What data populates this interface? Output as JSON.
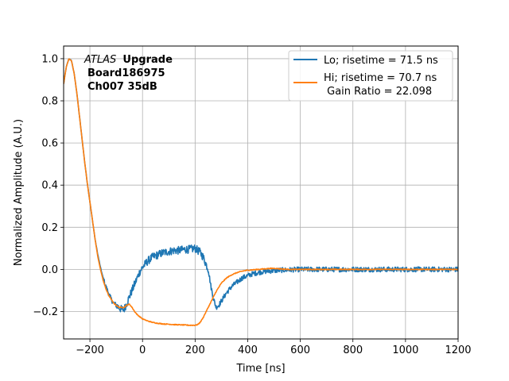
{
  "chart_data": {
    "type": "line",
    "title": "",
    "xlabel": "Time [ns]",
    "ylabel": "Normalized Amplitude (A.U.)",
    "xlim": [
      -300,
      1200
    ],
    "ylim": [
      -0.33,
      1.06
    ],
    "xticks": [
      -200,
      0,
      200,
      400,
      600,
      800,
      1000,
      1200
    ],
    "xtick_labels": [
      "−200",
      "0",
      "200",
      "400",
      "600",
      "800",
      "1000",
      "1200"
    ],
    "yticks": [
      -0.2,
      0.0,
      0.2,
      0.4,
      0.6,
      0.8,
      1.0
    ],
    "ytick_labels": [
      "−0.2",
      "0.0",
      "0.2",
      "0.4",
      "0.6",
      "0.8",
      "1.0"
    ],
    "grid": true,
    "legend_position": "top-right",
    "annotation": {
      "italic": "ATLAS",
      "bold": "Upgrade",
      "line2": "Board186975",
      "line3": "Ch007 35dB"
    },
    "series": [
      {
        "name": "Lo; risetime = 71.5 ns",
        "color": "#1f77b4",
        "noise": 0.012,
        "x": [
          -300,
          -290,
          -280,
          -270,
          -260,
          -250,
          -240,
          -230,
          -220,
          -210,
          -200,
          -190,
          -180,
          -170,
          -160,
          -150,
          -140,
          -130,
          -120,
          -110,
          -100,
          -90,
          -80,
          -70,
          -60,
          -50,
          -40,
          -30,
          -20,
          -10,
          0,
          20,
          40,
          60,
          80,
          100,
          120,
          140,
          160,
          180,
          200,
          220,
          230,
          240,
          250,
          260,
          270,
          280,
          290,
          300,
          320,
          340,
          360,
          380,
          400,
          420,
          440,
          460,
          480,
          500,
          520,
          540,
          560,
          580,
          600,
          700,
          800,
          900,
          1000,
          1100,
          1200
        ],
        "y": [
          0.88,
          0.96,
          1.0,
          0.99,
          0.93,
          0.84,
          0.73,
          0.62,
          0.51,
          0.41,
          0.32,
          0.23,
          0.14,
          0.07,
          0.01,
          -0.04,
          -0.08,
          -0.11,
          -0.14,
          -0.16,
          -0.17,
          -0.18,
          -0.19,
          -0.19,
          -0.16,
          -0.13,
          -0.1,
          -0.07,
          -0.04,
          -0.01,
          0.01,
          0.04,
          0.06,
          0.07,
          0.08,
          0.085,
          0.09,
          0.09,
          0.095,
          0.095,
          0.1,
          0.08,
          0.06,
          0.03,
          0.0,
          -0.08,
          -0.14,
          -0.18,
          -0.17,
          -0.15,
          -0.11,
          -0.08,
          -0.06,
          -0.04,
          -0.03,
          -0.02,
          -0.015,
          -0.01,
          -0.008,
          -0.006,
          -0.004,
          -0.003,
          -0.002,
          -0.001,
          0.0,
          0.0,
          0.0,
          0.0,
          0.0,
          0.0,
          0.0
        ]
      },
      {
        "name": "Hi; risetime = 70.7 ns",
        "name_line2": " Gain Ratio = 22.098",
        "color": "#ff7f0e",
        "noise": 0.002,
        "x": [
          -300,
          -290,
          -280,
          -270,
          -260,
          -250,
          -240,
          -230,
          -220,
          -210,
          -200,
          -190,
          -180,
          -170,
          -160,
          -150,
          -140,
          -130,
          -120,
          -110,
          -100,
          -90,
          -80,
          -70,
          -60,
          -50,
          -40,
          -30,
          -20,
          -10,
          0,
          20,
          40,
          60,
          80,
          100,
          120,
          140,
          160,
          180,
          200,
          210,
          220,
          230,
          240,
          250,
          260,
          270,
          280,
          290,
          300,
          320,
          340,
          360,
          380,
          400,
          420,
          440,
          460,
          480,
          500,
          520,
          540,
          560,
          580,
          600,
          700,
          800,
          900,
          1000,
          1100,
          1200
        ],
        "y": [
          0.88,
          0.96,
          1.0,
          0.99,
          0.93,
          0.84,
          0.73,
          0.62,
          0.51,
          0.41,
          0.32,
          0.23,
          0.14,
          0.06,
          0.0,
          -0.05,
          -0.09,
          -0.12,
          -0.14,
          -0.16,
          -0.17,
          -0.18,
          -0.18,
          -0.18,
          -0.17,
          -0.165,
          -0.18,
          -0.2,
          -0.215,
          -0.225,
          -0.235,
          -0.245,
          -0.252,
          -0.256,
          -0.259,
          -0.26,
          -0.262,
          -0.263,
          -0.264,
          -0.265,
          -0.265,
          -0.262,
          -0.25,
          -0.23,
          -0.205,
          -0.18,
          -0.155,
          -0.13,
          -0.105,
          -0.085,
          -0.065,
          -0.04,
          -0.025,
          -0.015,
          -0.008,
          -0.004,
          -0.002,
          0.0,
          0.002,
          0.004,
          0.005,
          0.003,
          0.001,
          0.0,
          0.0,
          0.0,
          0.0,
          0.0,
          0.0,
          0.0,
          0.0,
          0.0
        ]
      }
    ]
  }
}
